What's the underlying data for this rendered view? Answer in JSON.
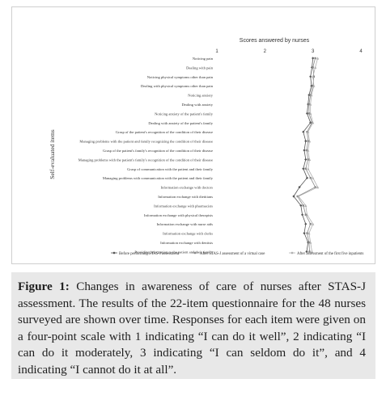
{
  "chart_data": {
    "type": "line",
    "title": "Scores answered by nurses",
    "ylabel": "Self-evaluated items",
    "xlabel": "",
    "orientation": "horizontal-values",
    "xlim": [
      1,
      4
    ],
    "xticks": [
      "1",
      "2",
      "3",
      "4"
    ],
    "grid": false,
    "legend_position": "bottom",
    "categories": [
      "Noticing pain",
      "Dealing with pain",
      "Noticing physical symptoms other than pain",
      "Dealing with physical symptoms other than pain",
      "Noticing anxiety",
      "Dealing with anxiety",
      "Noticing anxiety of the patient's family",
      "Dealing with anxiety of the patient's family",
      "Grasp of the patient's recognition of the condition of their disease",
      "Managing problems with the patient and family recognizing the condition of their disease",
      "Grasp of the patient's family's recognition of the condition of their disease",
      "Managing problems with the patient's family's recognition of the condition of their disease",
      "Grasp of communication with the patient and their family",
      "Managing problems with communication with the patient and their family",
      "Information exchange with doctors",
      "Information exchange with dietitians",
      "Information exchange with pharmacists",
      "Information exchange with physical therapists",
      "Information exchange with nurse aids",
      "Information exchange with clerks",
      "Information exchange with dentists",
      "Providing information to the patient and their family"
    ],
    "series": [
      {
        "name": "Before performing STAS-J assessment",
        "color": "#555555",
        "marker": "diamond",
        "values": [
          3.0,
          2.98,
          2.95,
          2.97,
          2.92,
          2.9,
          2.88,
          2.95,
          2.8,
          2.85,
          2.82,
          2.85,
          2.8,
          2.88,
          2.72,
          2.6,
          2.75,
          2.78,
          2.85,
          2.82,
          2.9,
          2.87
        ]
      },
      {
        "name": "After STAS-J assessment of a virtual case",
        "color": "#8a8a8a",
        "marker": "square",
        "values": [
          3.05,
          3.0,
          3.02,
          3.0,
          2.95,
          2.92,
          2.92,
          2.98,
          2.88,
          2.9,
          2.87,
          2.9,
          2.85,
          2.95,
          3.05,
          2.68,
          2.8,
          2.85,
          2.95,
          2.88,
          2.92,
          2.93
        ]
      },
      {
        "name": "After assessment of the first five inpatients",
        "color": "#b0b0b0",
        "marker": "triangle",
        "values": [
          3.1,
          3.05,
          3.0,
          3.02,
          2.97,
          2.95,
          2.95,
          3.0,
          2.9,
          2.93,
          2.9,
          2.93,
          2.9,
          3.0,
          3.1,
          2.7,
          2.85,
          2.88,
          3.0,
          2.92,
          2.95,
          2.98
        ]
      }
    ]
  },
  "caption": {
    "label": "Figure 1:",
    "text": "Changes in awareness of care of nurses after STAS-J assessment. The results of the 22-item questionnaire for the 48 nurses surveyed are shown over time. Responses for each item were given on a four-point scale with 1 indicating “I can do it well”, 2 indicating “I can do it moderately, 3 indicating “I can seldom do it”, and 4 indicating “I cannot do it at all”."
  }
}
